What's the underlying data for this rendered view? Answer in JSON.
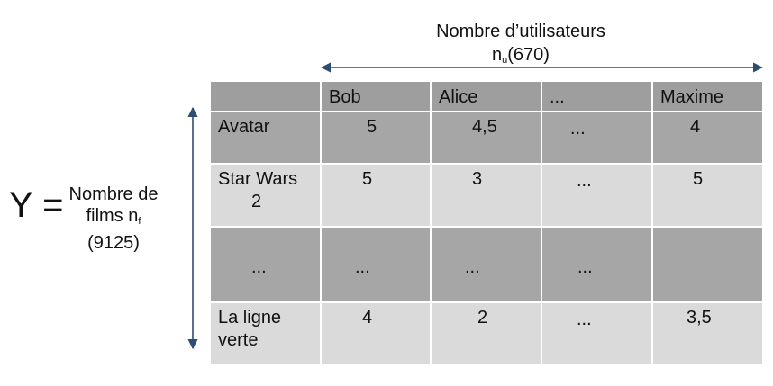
{
  "y_symbol": "Y =",
  "rows_label": {
    "line1": "Nombre de",
    "line2_text": "films n",
    "line2_sub": "f",
    "line3": "(9125)"
  },
  "cols_label": {
    "line1": "Nombre d’utilisateurs",
    "line2_text": "n",
    "line2_sub": "u",
    "line2_rest": "(670)"
  },
  "colors": {
    "header_bg": "#9e9e9e",
    "dark_row_bg": "#a6a6a6",
    "light_row_bg": "#dadada",
    "arrow": "#2e4d73"
  },
  "table": {
    "header": [
      "",
      "Bob",
      "Alice",
      "...",
      "Maxime"
    ],
    "rows": [
      {
        "name_line1": "Avatar",
        "name_line2": "",
        "values": [
          "5",
          "4,5",
          "...",
          "4"
        ]
      },
      {
        "name_line1": "Star Wars",
        "name_line2": "2",
        "values": [
          "5",
          "3",
          "...",
          "5"
        ]
      },
      {
        "name_line1": "...",
        "name_line2": "",
        "values": [
          "...",
          "...",
          "...",
          ""
        ]
      },
      {
        "name_line1": "La ligne",
        "name_line2": "verte",
        "values": [
          "4",
          "2",
          "...",
          "3,5"
        ]
      }
    ]
  }
}
